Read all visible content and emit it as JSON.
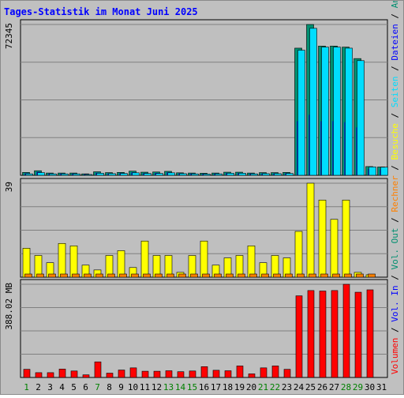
{
  "chart_data": {
    "title": "Tages-Statistik im Monat Juni 2025",
    "type": "bar",
    "categories": [
      "1",
      "2",
      "3",
      "4",
      "5",
      "6",
      "7",
      "8",
      "9",
      "10",
      "11",
      "12",
      "13",
      "14",
      "15",
      "16",
      "17",
      "18",
      "19",
      "20",
      "21",
      "22",
      "23",
      "24",
      "25",
      "26",
      "27",
      "28",
      "29",
      "30",
      "31"
    ],
    "category_colors": [
      "#008000",
      "#000000",
      "#000000",
      "#000000",
      "#000000",
      "#000000",
      "#008000",
      "#000000",
      "#000000",
      "#000000",
      "#000000",
      "#000000",
      "#008000",
      "#008000",
      "#008000",
      "#000000",
      "#000000",
      "#000000",
      "#000000",
      "#000000",
      "#008000",
      "#008000",
      "#000000",
      "#000000",
      "#000000",
      "#000000",
      "#000000",
      "#008000",
      "#008000",
      "#000000",
      "#000000"
    ],
    "panels": [
      {
        "id": "top",
        "ymax_label": "72345",
        "ylim": [
          0,
          72345
        ],
        "series": [
          {
            "name": "Anfragen",
            "color": "#008f70",
            "values": [
              1400,
              2200,
              1100,
              1100,
              1100,
              700,
              1700,
              1300,
              1400,
              2000,
              1500,
              1600,
              1900,
              1200,
              1100,
              1000,
              1100,
              1500,
              1500,
              1100,
              1300,
              1300,
              1400,
              61000,
              72345,
              62000,
              62000,
              61500,
              56000,
              4200,
              4000
            ]
          },
          {
            "name": "Dateien",
            "color": "#0000ff",
            "values": [
              900,
              1600,
              800,
              800,
              800,
              500,
              1200,
              900,
              1000,
              1400,
              1000,
              1100,
              1400,
              900,
              800,
              700,
              800,
              1100,
              1100,
              800,
              900,
              900,
              1000,
              26000,
              29000,
              26000,
              26000,
              25500,
              23000,
              3000,
              2800
            ]
          },
          {
            "name": "Seiten",
            "color": "#00ddff",
            "values": [
              700,
              1300,
              700,
              700,
              700,
              400,
              1000,
              800,
              900,
              1200,
              900,
              900,
              1200,
              800,
              700,
              600,
              700,
              1000,
              1000,
              700,
              800,
              800,
              900,
              60000,
              70500,
              61500,
              61500,
              61000,
              55000,
              4000,
              3900
            ]
          }
        ]
      },
      {
        "id": "mid",
        "ymax_label": "39",
        "ylim": [
          0,
          39
        ],
        "series": [
          {
            "name": "Besuche",
            "color": "#ffff00",
            "values": [
              12,
              9,
              6,
              14,
              13,
              5,
              3,
              9,
              11,
              4,
              15,
              9,
              9,
              2,
              9,
              15,
              5,
              8,
              9,
              13,
              6,
              9,
              8,
              19,
              39,
              32,
              24,
              32,
              2,
              1,
              0
            ]
          },
          {
            "name": "Rechner",
            "color": "#ff8000",
            "values": [
              1,
              1,
              1,
              1,
              1,
              1,
              1,
              1,
              1,
              1,
              1,
              1,
              1,
              1,
              1,
              1,
              1,
              1,
              1,
              1,
              1,
              1,
              1,
              1,
              1,
              1,
              1,
              1,
              1,
              1,
              0
            ]
          }
        ]
      },
      {
        "id": "bot",
        "ymax_label": "388.02 MB",
        "ylim": [
          0,
          388.02
        ],
        "series": [
          {
            "name": "Volumen",
            "color": "#ff0000",
            "values": [
              34,
              20,
              20,
              35,
              27,
              11,
              65,
              18,
              31,
              40,
              26,
              26,
              28,
              24,
              27,
              45,
              30,
              28,
              48,
              15,
              40,
              48,
              34,
              340,
              362,
              360,
              362,
              388,
              355,
              365,
              0
            ]
          }
        ]
      }
    ],
    "legend": [
      "Volumen",
      "Vol. In",
      "Vol. Out",
      "Rechner",
      "Besuche",
      "Seiten",
      "Dateien",
      "Anfragen"
    ],
    "legend_colors": [
      "#ff0000",
      "#0000ff",
      "#008f70",
      "#ff8000",
      "#ffff00",
      "#00ddff",
      "#0000ff",
      "#008f70"
    ],
    "legend_separator": " / ",
    "legend_placement": "right-vertical"
  }
}
